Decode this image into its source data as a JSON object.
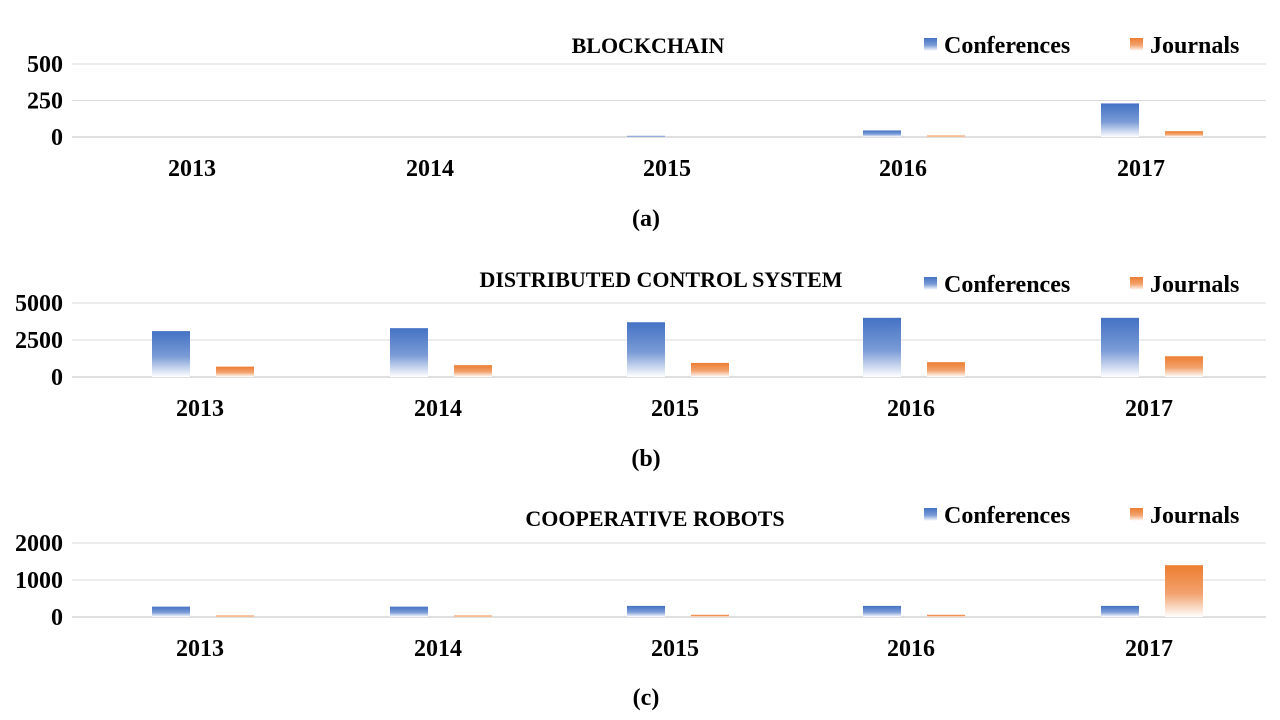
{
  "colors": {
    "conferences": "#4472C4",
    "journals": "#ED7D31",
    "gridline": "#d9d9d9",
    "axis": "#bfbfbf"
  },
  "legend": {
    "conferences_label": "Conferences",
    "journals_label": "Journals"
  },
  "chart_data": [
    {
      "type": "bar",
      "title": "BLOCKCHAIN",
      "caption": "(a)",
      "categories": [
        "2013",
        "2014",
        "2015",
        "2016",
        "2017"
      ],
      "series": [
        {
          "name": "Conferences",
          "values": [
            0,
            0,
            8,
            45,
            230
          ]
        },
        {
          "name": "Journals",
          "values": [
            0,
            0,
            0,
            10,
            40
          ]
        }
      ],
      "ylim": [
        0,
        500
      ],
      "yticks": [
        0,
        250,
        500
      ],
      "ytick_labels": [
        "0",
        "250",
        "500"
      ],
      "grid": true,
      "legend_position": "top-right"
    },
    {
      "type": "bar",
      "title": "DISTRIBUTED CONTROL SYSTEM",
      "caption": "(b)",
      "categories": [
        "2013",
        "2014",
        "2015",
        "2016",
        "2017"
      ],
      "series": [
        {
          "name": "Conferences",
          "values": [
            3100,
            3300,
            3700,
            4000,
            4000
          ]
        },
        {
          "name": "Journals",
          "values": [
            700,
            800,
            950,
            1000,
            1400
          ]
        }
      ],
      "ylim": [
        0,
        5000
      ],
      "yticks": [
        0,
        2500,
        5000
      ],
      "ytick_labels": [
        "0",
        "2500",
        "5000"
      ],
      "grid": true,
      "legend_position": "top-right"
    },
    {
      "type": "bar",
      "title": "COOPERATIVE ROBOTS",
      "caption": "(c)",
      "categories": [
        "2013",
        "2014",
        "2015",
        "2016",
        "2017"
      ],
      "series": [
        {
          "name": "Conferences",
          "values": [
            280,
            280,
            300,
            300,
            300
          ]
        },
        {
          "name": "Journals",
          "values": [
            40,
            40,
            60,
            60,
            1400
          ]
        }
      ],
      "ylim": [
        0,
        2000
      ],
      "yticks": [
        0,
        1000,
        2000
      ],
      "ytick_labels": [
        "0",
        "1000",
        "2000"
      ],
      "grid": true,
      "legend_position": "top-right"
    }
  ]
}
